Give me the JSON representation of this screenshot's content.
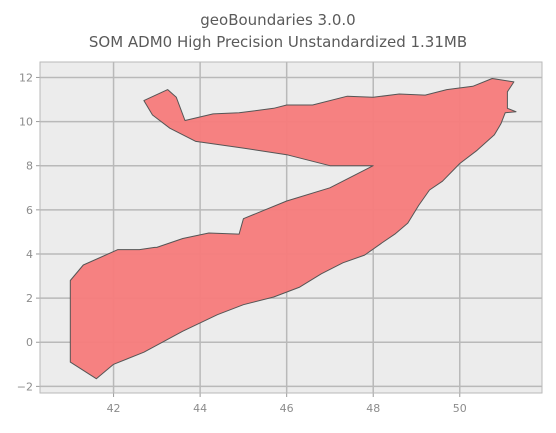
{
  "chart_data": {
    "type": "map",
    "title_line1": "geoBoundaries 3.0.0",
    "title_line2": "SOM ADM0 High Precision Unstandardized 1.31MB",
    "xlabel": "",
    "ylabel": "",
    "xlim": [
      40.3,
      51.9
    ],
    "ylim": [
      -2.3,
      12.7
    ],
    "xticks": [
      42,
      44,
      46,
      48,
      50
    ],
    "yticks": [
      -2,
      0,
      2,
      4,
      6,
      8,
      10,
      12
    ],
    "x_tick_labels": [
      "42",
      "44",
      "46",
      "48",
      "50"
    ],
    "y_tick_labels": [
      "−2",
      "0",
      "2",
      "4",
      "6",
      "8",
      "10",
      "12"
    ],
    "grid": true,
    "colors": {
      "fill": "#f77b7b",
      "edge": "#555555",
      "plot_bg": "#ececec",
      "grid": "#b9b9b9"
    },
    "boundary_lonlat": [
      [
        41.0,
        -0.9
      ],
      [
        41.6,
        -1.65
      ],
      [
        42.0,
        -1.0
      ],
      [
        42.7,
        -0.45
      ],
      [
        43.6,
        0.5
      ],
      [
        44.4,
        1.25
      ],
      [
        45.0,
        1.7
      ],
      [
        45.7,
        2.05
      ],
      [
        46.3,
        2.5
      ],
      [
        46.8,
        3.1
      ],
      [
        47.3,
        3.6
      ],
      [
        47.8,
        3.95
      ],
      [
        48.2,
        4.5
      ],
      [
        48.5,
        4.9
      ],
      [
        48.8,
        5.4
      ],
      [
        49.05,
        6.2
      ],
      [
        49.3,
        6.9
      ],
      [
        49.6,
        7.3
      ],
      [
        50.0,
        8.1
      ],
      [
        50.4,
        8.7
      ],
      [
        50.8,
        9.4
      ],
      [
        50.95,
        9.9
      ],
      [
        51.05,
        10.4
      ],
      [
        51.3,
        10.45
      ],
      [
        51.1,
        10.6
      ],
      [
        51.1,
        11.05
      ],
      [
        51.1,
        11.35
      ],
      [
        51.25,
        11.8
      ],
      [
        50.75,
        11.95
      ],
      [
        50.3,
        11.6
      ],
      [
        49.7,
        11.45
      ],
      [
        49.2,
        11.2
      ],
      [
        48.6,
        11.25
      ],
      [
        48.0,
        11.1
      ],
      [
        47.4,
        11.15
      ],
      [
        46.6,
        10.75
      ],
      [
        46.0,
        10.75
      ],
      [
        45.7,
        10.6
      ],
      [
        44.9,
        10.4
      ],
      [
        44.3,
        10.35
      ],
      [
        43.65,
        10.05
      ],
      [
        43.45,
        11.1
      ],
      [
        43.25,
        11.45
      ],
      [
        42.7,
        10.95
      ],
      [
        42.9,
        10.3
      ],
      [
        43.3,
        9.7
      ],
      [
        43.9,
        9.1
      ],
      [
        45.0,
        8.8
      ],
      [
        46.0,
        8.5
      ],
      [
        47.0,
        8.0
      ],
      [
        48.0,
        8.0
      ],
      [
        47.0,
        7.0
      ],
      [
        46.0,
        6.4
      ],
      [
        45.0,
        5.6
      ],
      [
        44.9,
        4.9
      ],
      [
        44.2,
        4.95
      ],
      [
        43.6,
        4.7
      ],
      [
        43.0,
        4.3
      ],
      [
        42.95,
        4.3
      ],
      [
        42.6,
        4.2
      ],
      [
        42.1,
        4.2
      ],
      [
        41.3,
        3.5
      ],
      [
        41.0,
        2.8
      ]
    ]
  }
}
